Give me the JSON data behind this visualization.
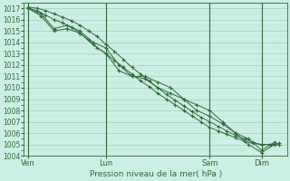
{
  "title": "Pression niveau de la mer( hPa )",
  "bg_color": "#cceee4",
  "plot_bg_color": "#cceee4",
  "grid_major_color": "#aaccbb",
  "grid_minor_color": "#bbddcc",
  "line_color": "#2d6a38",
  "ylim": [
    1004,
    1017.5
  ],
  "yticks": [
    1004,
    1005,
    1006,
    1007,
    1008,
    1009,
    1010,
    1011,
    1012,
    1013,
    1014,
    1015,
    1016,
    1017
  ],
  "xtick_labels": [
    "Ven",
    "Lun",
    "Sam",
    "Dim"
  ],
  "xtick_positions": [
    0,
    36,
    84,
    108
  ],
  "vline_positions": [
    0,
    36,
    84,
    108
  ],
  "total_points": 120,
  "series1_x": [
    0,
    4,
    8,
    12,
    16,
    20,
    24,
    28,
    32,
    36,
    40,
    44,
    48,
    52,
    56,
    60,
    64,
    68,
    72,
    76,
    80,
    84,
    88,
    92,
    96,
    100,
    104,
    108,
    112,
    116
  ],
  "series1_y": [
    1017.1,
    1017.0,
    1016.8,
    1016.5,
    1016.2,
    1015.9,
    1015.5,
    1015.0,
    1014.5,
    1013.8,
    1013.2,
    1012.5,
    1011.8,
    1011.2,
    1010.6,
    1010.0,
    1009.4,
    1008.9,
    1008.4,
    1007.9,
    1007.4,
    1007.0,
    1006.6,
    1006.2,
    1005.8,
    1005.5,
    1005.2,
    1005.0,
    1005.0,
    1005.0
  ],
  "series2_x": [
    0,
    4,
    8,
    12,
    16,
    20,
    24,
    28,
    32,
    36,
    40,
    44,
    48,
    52,
    56,
    60,
    64,
    68,
    72,
    76,
    80,
    84,
    88,
    92,
    96,
    100,
    104,
    108,
    112,
    116
  ],
  "series2_y": [
    1017.0,
    1016.8,
    1016.4,
    1016.0,
    1015.7,
    1015.3,
    1014.8,
    1014.2,
    1013.5,
    1013.0,
    1012.4,
    1011.8,
    1011.2,
    1010.6,
    1010.1,
    1009.5,
    1009.0,
    1008.5,
    1008.0,
    1007.5,
    1007.0,
    1006.5,
    1006.2,
    1005.9,
    1005.6,
    1005.3,
    1005.1,
    1005.0,
    1005.0,
    1005.1
  ],
  "series3_x": [
    0,
    6,
    12,
    18,
    24,
    30,
    36,
    42,
    48,
    54,
    60,
    66,
    72,
    78,
    84,
    90,
    96,
    102,
    108,
    114
  ],
  "series3_y": [
    1017.0,
    1016.5,
    1015.2,
    1015.5,
    1015.0,
    1014.0,
    1013.5,
    1012.0,
    1011.0,
    1011.0,
    1010.5,
    1010.0,
    1009.0,
    1008.5,
    1008.0,
    1007.0,
    1006.0,
    1005.5,
    1004.5,
    1005.2
  ],
  "series4_x": [
    0,
    6,
    12,
    18,
    24,
    30,
    36,
    42,
    48,
    54,
    60,
    66,
    72,
    78,
    84,
    90,
    96,
    102,
    108,
    114
  ],
  "series4_y": [
    1017.0,
    1016.3,
    1015.0,
    1015.2,
    1014.8,
    1013.8,
    1013.0,
    1011.5,
    1011.0,
    1010.8,
    1010.0,
    1009.5,
    1009.0,
    1008.0,
    1007.5,
    1006.8,
    1006.0,
    1005.0,
    1004.3,
    1005.0
  ]
}
